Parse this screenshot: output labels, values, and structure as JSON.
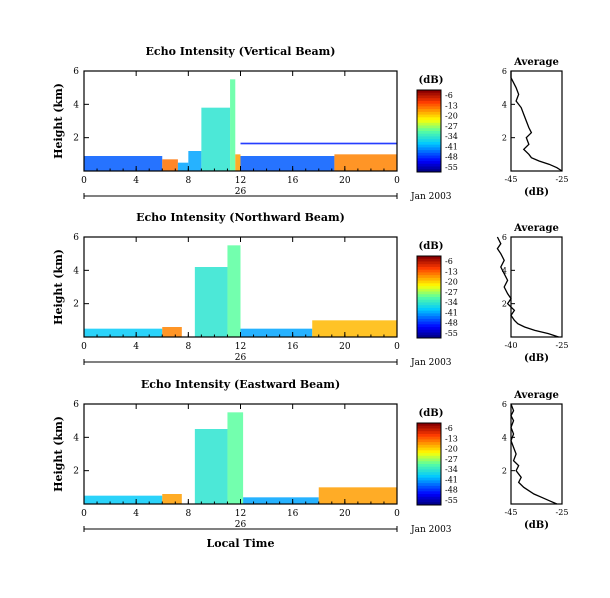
{
  "chart_data": [
    {
      "type": "heatmap",
      "title": "Echo Intensity (Vertical Beam)",
      "ylabel": "Height (km)",
      "ylim": [
        0,
        6
      ],
      "y_ticks": [
        "6",
        "4",
        "2"
      ],
      "xlim": [
        0,
        24
      ],
      "x_ticks": [
        "0",
        "4",
        "8",
        "12",
        "16",
        "20",
        "0"
      ],
      "date_day": "26",
      "date_label": "Jan 2003",
      "cells": [
        {
          "t": [
            0,
            6
          ],
          "h": [
            0,
            0.9
          ],
          "level": 0.22
        },
        {
          "t": [
            6,
            7.2
          ],
          "h": [
            0,
            0.7
          ],
          "level": 0.8
        },
        {
          "t": [
            7.2,
            8
          ],
          "h": [
            0,
            0.5
          ],
          "level": 0.3
        },
        {
          "t": [
            8,
            9
          ],
          "h": [
            0,
            1.2
          ],
          "level": 0.3
        },
        {
          "t": [
            9,
            11.2
          ],
          "h": [
            0,
            3.8
          ],
          "level": 0.42
        },
        {
          "t": [
            11.2,
            11.6
          ],
          "h": [
            0,
            5.5
          ],
          "level": 0.5
        },
        {
          "t": [
            11.6,
            12
          ],
          "h": [
            0,
            1.0
          ],
          "level": 0.75
        },
        {
          "t": [
            12,
            19.2
          ],
          "h": [
            0,
            0.9
          ],
          "level": 0.22
        },
        {
          "t": [
            19.2,
            24
          ],
          "h": [
            0,
            1.0
          ],
          "level": 0.78
        },
        {
          "t": [
            12,
            24
          ],
          "h": [
            1.6,
            1.7
          ],
          "level": 0.15
        }
      ],
      "colorbar": {
        "label": "(dB)",
        "ticks": [
          "-6",
          "-13",
          "-20",
          "-27",
          "-34",
          "-41",
          "-48",
          "-55"
        ]
      },
      "profile": {
        "title": "Average",
        "xlabel": "(dB)",
        "x_ticks": [
          "-45",
          "-25"
        ],
        "y_ticks": [
          "6",
          "4",
          "2"
        ],
        "x": [
          -25,
          -27,
          -30,
          -34,
          -37,
          -38,
          -40,
          -38,
          -39,
          -37,
          -38,
          -39,
          -40,
          -41,
          -43,
          -42,
          -43,
          -44,
          -45,
          -45
        ],
        "h": [
          0,
          0.2,
          0.4,
          0.6,
          0.8,
          1.0,
          1.3,
          1.6,
          2.0,
          2.3,
          2.6,
          3.0,
          3.4,
          3.8,
          4.2,
          4.6,
          5.0,
          5.3,
          5.6,
          6.0
        ]
      }
    },
    {
      "type": "heatmap",
      "title": "Echo Intensity (Northward Beam)",
      "ylabel": "Height (km)",
      "ylim": [
        0,
        6
      ],
      "y_ticks": [
        "6",
        "4",
        "2"
      ],
      "xlim": [
        0,
        24
      ],
      "x_ticks": [
        "0",
        "4",
        "8",
        "12",
        "16",
        "20",
        "0"
      ],
      "date_day": "26",
      "date_label": "Jan 2003",
      "cells": [
        {
          "t": [
            0,
            6
          ],
          "h": [
            0,
            0.5
          ],
          "level": 0.35
        },
        {
          "t": [
            6,
            7.5
          ],
          "h": [
            0,
            0.6
          ],
          "level": 0.78
        },
        {
          "t": [
            8.5,
            11
          ],
          "h": [
            0,
            4.2
          ],
          "level": 0.42
        },
        {
          "t": [
            11,
            12
          ],
          "h": [
            0,
            5.5
          ],
          "level": 0.5
        },
        {
          "t": [
            12,
            17.5
          ],
          "h": [
            0,
            0.5
          ],
          "level": 0.3
        },
        {
          "t": [
            17.5,
            24
          ],
          "h": [
            0,
            1.0
          ],
          "level": 0.72
        }
      ],
      "colorbar": {
        "label": "(dB)",
        "ticks": [
          "-6",
          "-13",
          "-20",
          "-27",
          "-34",
          "-41",
          "-48",
          "-55"
        ]
      },
      "profile": {
        "title": "Average",
        "xlabel": "(dB)",
        "x_ticks": [
          "-40",
          "-25"
        ],
        "y_ticks": [
          "6",
          "4",
          "2"
        ],
        "x": [
          -26,
          -29,
          -33,
          -36,
          -38,
          -39,
          -40,
          -39,
          -41,
          -40,
          -41,
          -42,
          -41,
          -42,
          -43,
          -42,
          -43,
          -44,
          -43,
          -44
        ],
        "h": [
          0,
          0.2,
          0.4,
          0.6,
          0.8,
          1.0,
          1.3,
          1.6,
          2.0,
          2.3,
          2.6,
          3.0,
          3.4,
          3.8,
          4.2,
          4.6,
          5.0,
          5.3,
          5.6,
          6.0
        ]
      }
    },
    {
      "type": "heatmap",
      "title": "Echo Intensity (Eastward Beam)",
      "ylabel": "Height (km)",
      "ylim": [
        0,
        6
      ],
      "y_ticks": [
        "6",
        "4",
        "2"
      ],
      "xlim": [
        0,
        24
      ],
      "x_ticks": [
        "0",
        "4",
        "8",
        "12",
        "16",
        "20",
        "0"
      ],
      "xlabel": "Local Time",
      "date_day": "26",
      "date_label": "Jan 2003",
      "cells": [
        {
          "t": [
            0,
            6
          ],
          "h": [
            0,
            0.5
          ],
          "level": 0.35
        },
        {
          "t": [
            6,
            7.5
          ],
          "h": [
            0,
            0.6
          ],
          "level": 0.75
        },
        {
          "t": [
            8.5,
            11
          ],
          "h": [
            0,
            4.5
          ],
          "level": 0.42
        },
        {
          "t": [
            11,
            12.2
          ],
          "h": [
            0,
            5.5
          ],
          "level": 0.5
        },
        {
          "t": [
            12.2,
            18
          ],
          "h": [
            0,
            0.4
          ],
          "level": 0.3
        },
        {
          "t": [
            18,
            24
          ],
          "h": [
            0,
            1.0
          ],
          "level": 0.75
        }
      ],
      "colorbar": {
        "label": "(dB)",
        "ticks": [
          "-6",
          "-13",
          "-20",
          "-27",
          "-34",
          "-41",
          "-48",
          "-55"
        ]
      },
      "profile": {
        "title": "Average",
        "xlabel": "(dB)",
        "x_ticks": [
          "-45",
          "-25"
        ],
        "y_ticks": [
          "6",
          "4",
          "2"
        ],
        "x": [
          -27,
          -30,
          -33,
          -36,
          -38,
          -40,
          -42,
          -41,
          -43,
          -42,
          -44,
          -43,
          -44,
          -45,
          -44,
          -45,
          -44,
          -45,
          -44,
          -45
        ],
        "h": [
          0,
          0.2,
          0.4,
          0.6,
          0.8,
          1.0,
          1.3,
          1.6,
          2.0,
          2.3,
          2.6,
          3.0,
          3.4,
          3.8,
          4.2,
          4.6,
          5.0,
          5.3,
          5.6,
          6.0
        ]
      }
    }
  ]
}
